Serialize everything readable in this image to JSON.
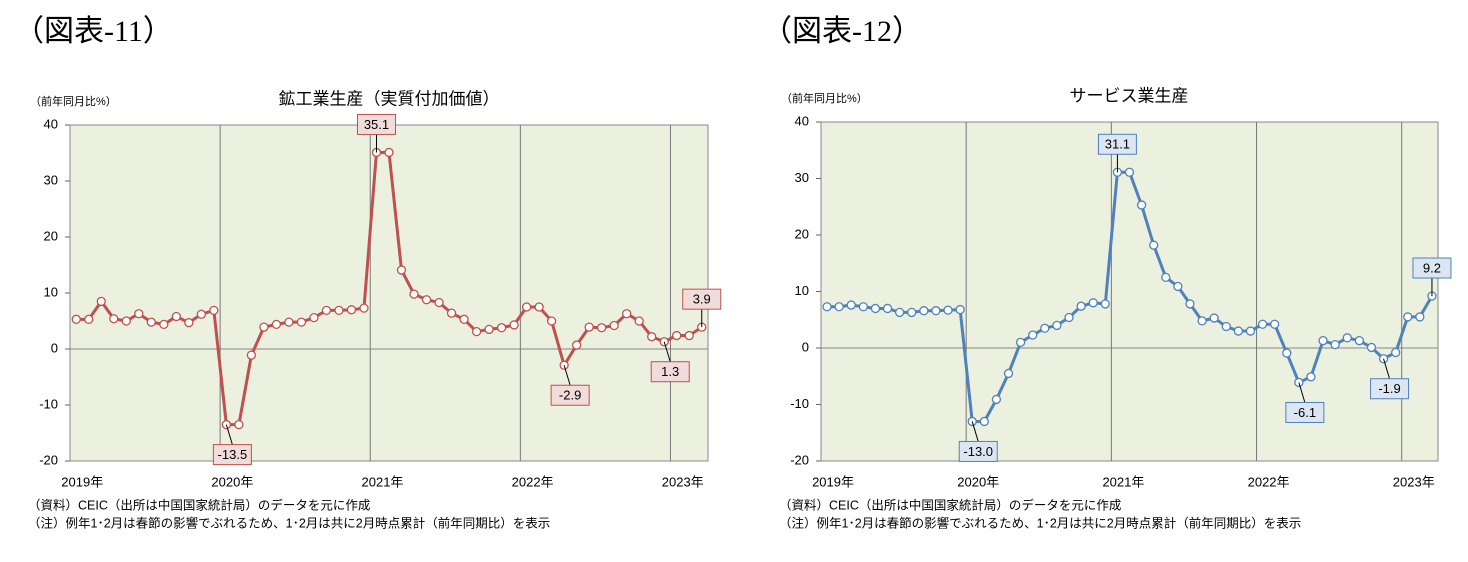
{
  "chart_data": [
    {
      "type": "line",
      "figure_label": "（図表-11）",
      "title": "鉱工業生産（実質付加価値）",
      "ylabel": "（前年同月比%）",
      "notes": [
        "（資料）CEIC（出所は中国国家統計局）のデータを元に作成",
        "（注）例年1･2月は春節の影響でぶれるため、1･2月は共に2月時点累計（前年同期比）を表示"
      ],
      "categories": [
        "2019年",
        null,
        null,
        null,
        null,
        null,
        null,
        null,
        null,
        null,
        null,
        null,
        "2020年",
        null,
        null,
        null,
        null,
        null,
        null,
        null,
        null,
        null,
        null,
        null,
        "2021年",
        null,
        null,
        null,
        null,
        null,
        null,
        null,
        null,
        null,
        null,
        null,
        "2022年",
        null,
        null,
        null,
        null,
        null,
        null,
        null,
        null,
        null,
        null,
        null,
        "2023年",
        null,
        null
      ],
      "series": [
        {
          "color": "#c0504d",
          "values": [
            5.3,
            5.3,
            8.5,
            5.4,
            5.0,
            6.3,
            4.8,
            4.4,
            5.8,
            4.7,
            6.2,
            6.9,
            -13.5,
            -13.5,
            -1.1,
            3.9,
            4.4,
            4.8,
            4.8,
            5.6,
            6.9,
            6.9,
            7.0,
            7.3,
            35.1,
            35.1,
            14.1,
            9.8,
            8.8,
            8.3,
            6.4,
            5.3,
            3.1,
            3.5,
            3.8,
            4.3,
            7.5,
            7.5,
            5.0,
            -2.9,
            0.7,
            3.9,
            3.8,
            4.2,
            6.3,
            5.0,
            2.2,
            1.3,
            2.4,
            2.4,
            3.9
          ],
          "value_labels": [
            null,
            null,
            null,
            null,
            null,
            null,
            null,
            null,
            null,
            null,
            null,
            null,
            "-13.5",
            null,
            null,
            null,
            null,
            null,
            null,
            null,
            null,
            null,
            null,
            null,
            "35.1",
            null,
            null,
            null,
            null,
            null,
            null,
            null,
            null,
            null,
            null,
            null,
            null,
            null,
            null,
            "-2.9",
            null,
            null,
            null,
            null,
            null,
            null,
            null,
            "1.3",
            null,
            null,
            "3.9"
          ],
          "label_fill": "#f2dcdb"
        }
      ],
      "ylim": [
        -20,
        40
      ],
      "yticks": [
        -20,
        -10,
        0,
        10,
        20,
        30,
        40
      ],
      "grid": false,
      "plot_background": "#ebf1de"
    },
    {
      "type": "line",
      "figure_label": "（図表-12）",
      "title": "サービス業生産",
      "ylabel": "（前年同月比%）",
      "notes": [
        "（資料）CEIC（出所は中国国家統計局）のデータを元に作成",
        "（注）例年1･2月は春節の影響でぶれるため、1･2月は共に2月時点累計（前年同期比）を表示"
      ],
      "categories": [
        "2019年",
        null,
        null,
        null,
        null,
        null,
        null,
        null,
        null,
        null,
        null,
        null,
        "2020年",
        null,
        null,
        null,
        null,
        null,
        null,
        null,
        null,
        null,
        null,
        null,
        "2021年",
        null,
        null,
        null,
        null,
        null,
        null,
        null,
        null,
        null,
        null,
        null,
        "2022年",
        null,
        null,
        null,
        null,
        null,
        null,
        null,
        null,
        null,
        null,
        null,
        "2023年",
        null,
        null
      ],
      "series": [
        {
          "color": "#4f81bd",
          "values": [
            7.3,
            7.3,
            7.6,
            7.3,
            7.0,
            7.0,
            6.3,
            6.3,
            6.6,
            6.6,
            6.7,
            6.8,
            -13.0,
            -13.0,
            -9.1,
            -4.5,
            1.0,
            2.3,
            3.5,
            4.0,
            5.4,
            7.4,
            8.0,
            7.8,
            31.1,
            31.1,
            25.3,
            18.2,
            12.5,
            10.9,
            7.8,
            4.8,
            5.3,
            3.8,
            3.0,
            3.0,
            4.2,
            4.2,
            -0.9,
            -6.1,
            -5.1,
            1.3,
            0.6,
            1.8,
            1.3,
            0.1,
            -1.9,
            -0.8,
            5.5,
            5.5,
            9.2
          ],
          "value_labels": [
            null,
            null,
            null,
            null,
            null,
            null,
            null,
            null,
            null,
            null,
            null,
            null,
            "-13.0",
            null,
            null,
            null,
            null,
            null,
            null,
            null,
            null,
            null,
            null,
            null,
            "31.1",
            null,
            null,
            null,
            null,
            null,
            null,
            null,
            null,
            null,
            null,
            null,
            null,
            null,
            null,
            "-6.1",
            null,
            null,
            null,
            null,
            null,
            null,
            "-1.9",
            null,
            null,
            null,
            "9.2"
          ],
          "label_fill": "#dce6f2"
        }
      ],
      "ylim": [
        -20,
        40
      ],
      "yticks": [
        -20,
        -10,
        0,
        10,
        20,
        30,
        40
      ],
      "grid": false,
      "plot_background": "#ebf1de"
    }
  ]
}
